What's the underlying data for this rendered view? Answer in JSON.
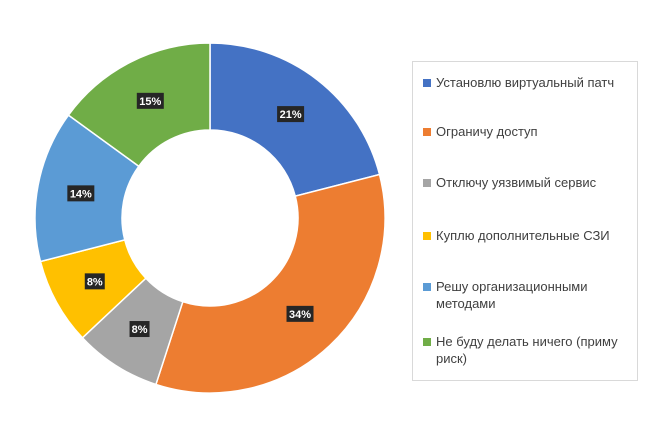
{
  "chart_data": {
    "type": "pie",
    "variant": "doughnut",
    "title": "",
    "slices": [
      {
        "label": "Установлю виртуальный патч",
        "value": 21,
        "display": "21%",
        "color": "#4472C4"
      },
      {
        "label": "Ограничу доступ",
        "value": 34,
        "display": "34%",
        "color": "#ED7D31"
      },
      {
        "label": "Отключу уязвимый сервис",
        "value": 8,
        "display": "8%",
        "color": "#A5A5A5"
      },
      {
        "label": "Куплю дополнительные СЗИ",
        "value": 8,
        "display": "8%",
        "color": "#FFC000"
      },
      {
        "label": "Решу организационными методами",
        "value": 14,
        "display": "14%",
        "color": "#5B9BD5"
      },
      {
        "label": "Не буду делать ничего (приму риск)",
        "value": 15,
        "display": "15%",
        "color": "#70AD47"
      }
    ],
    "legend_position": "right"
  }
}
